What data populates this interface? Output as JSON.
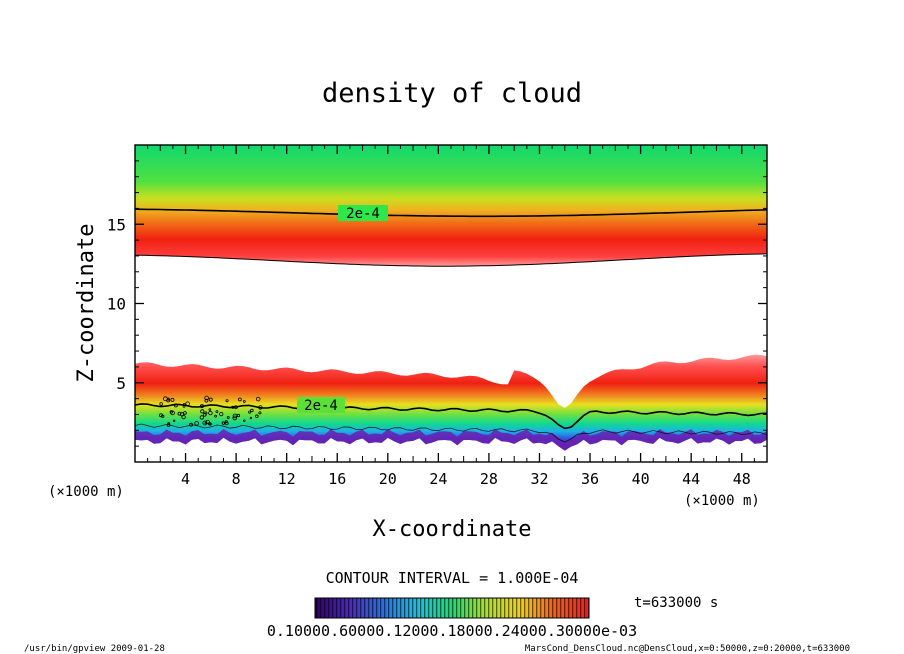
{
  "chart_data": {
    "type": "heatmap",
    "title": "density of cloud",
    "xlabel": "X-coordinate",
    "ylabel": "Z-coordinate",
    "x_unit": "(×1000 m)",
    "y_unit": "(×1000 m)",
    "xlim": [
      0,
      50
    ],
    "ylim": [
      0,
      20
    ],
    "x_ticks": [
      4,
      8,
      12,
      16,
      20,
      24,
      28,
      32,
      36,
      40,
      44,
      48
    ],
    "y_ticks": [
      5,
      10,
      15
    ],
    "contour_labels": [
      "2e-4",
      "2e-4"
    ],
    "contour_interval_text": "CONTOUR INTERVAL = 1.000E-04",
    "time_text": "t=633000 s",
    "colorbar_labels_text": "0.10000.60000.12000.18000.24000.30000e-03",
    "colorbar_range": [
      0.0,
      0.0003
    ],
    "colormap": [
      "#5a1fa8",
      "#2f4fd8",
      "#22b8e8",
      "#1fd27a",
      "#7ee030",
      "#e8e820",
      "#f0a020",
      "#f03010",
      "#ff6a6a"
    ],
    "layers": {
      "upper_cloud": {
        "z_bottom": 12.8,
        "z_top": 20,
        "peak_z": 14.2,
        "contour_2e4_z": 15.8
      },
      "lower_cloud": {
        "z_bottom": 1.0,
        "z_top": 6.2,
        "contour_2e4_z": 3.6,
        "dip_x": 34,
        "dip_z": 2.3
      }
    }
  },
  "footer": {
    "left": "/usr/bin/gpview  2009-01-28",
    "right": "MarsCond_DensCloud.nc@DensCloud,x=0:50000,z=0:20000,t=633000"
  }
}
